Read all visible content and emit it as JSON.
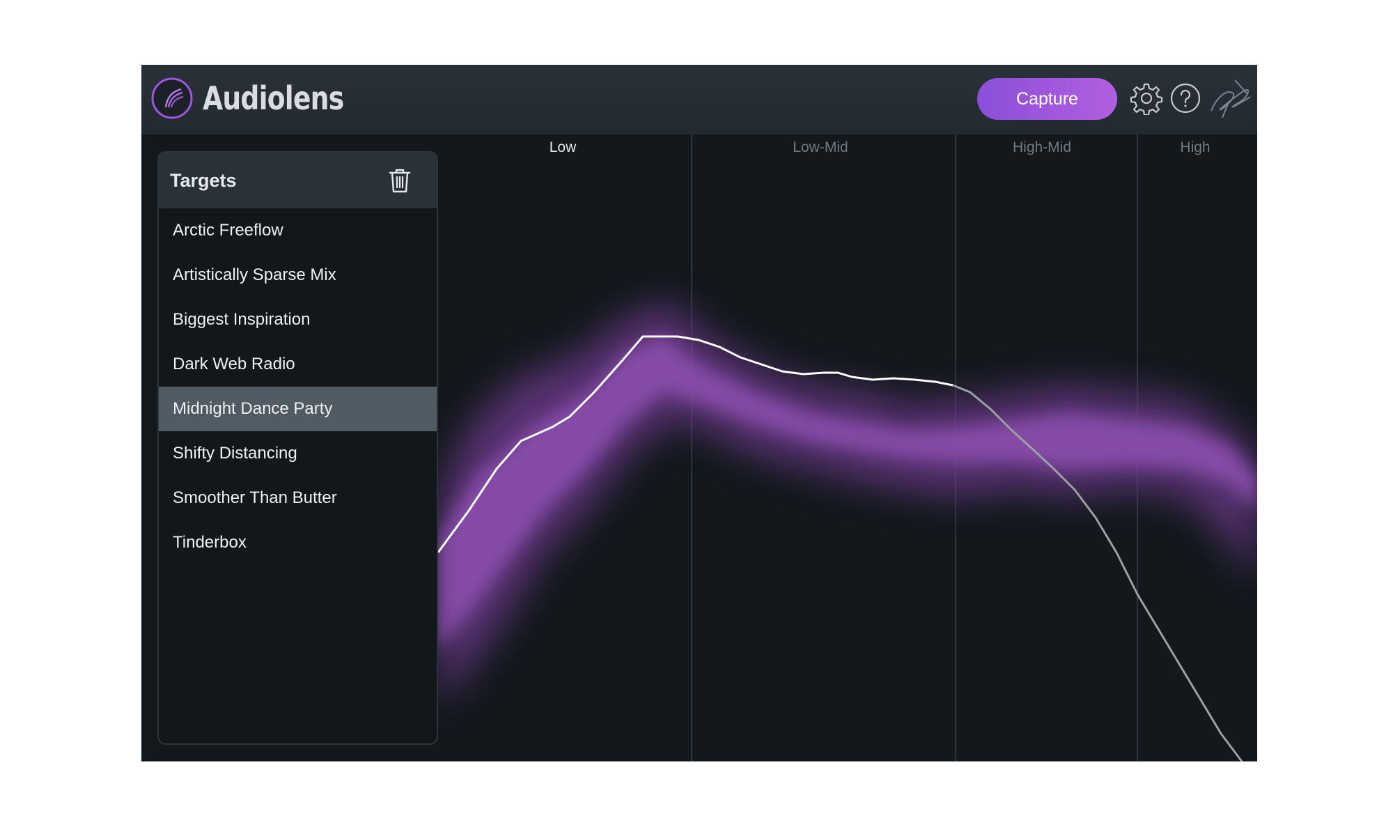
{
  "app": {
    "title": "Audiolens",
    "logo_icon": "spiral-logo-icon",
    "capture_label": "Capture",
    "accent_color": "#9b59e0",
    "icons": [
      "gear-icon",
      "help-icon",
      "signature-logo-icon"
    ]
  },
  "targets": {
    "title": "Targets",
    "delete_icon": "trash-icon",
    "selected": "Midnight Dance Party",
    "items": [
      "Arctic Freeflow",
      "Artistically Sparse Mix",
      "Biggest Inspiration",
      "Dark Web Radio",
      "Midnight Dance Party",
      "Shifty Distancing",
      "Smoother Than Butter",
      "Tinderbox"
    ]
  },
  "bands": {
    "low": "Low",
    "low_mid": "Low-Mid",
    "high_mid": "High-Mid",
    "high": "High",
    "active": "Low"
  },
  "spectrum": {
    "target_band_color": "#8e4fb0",
    "capture_curve_color": "#ffffff"
  }
}
